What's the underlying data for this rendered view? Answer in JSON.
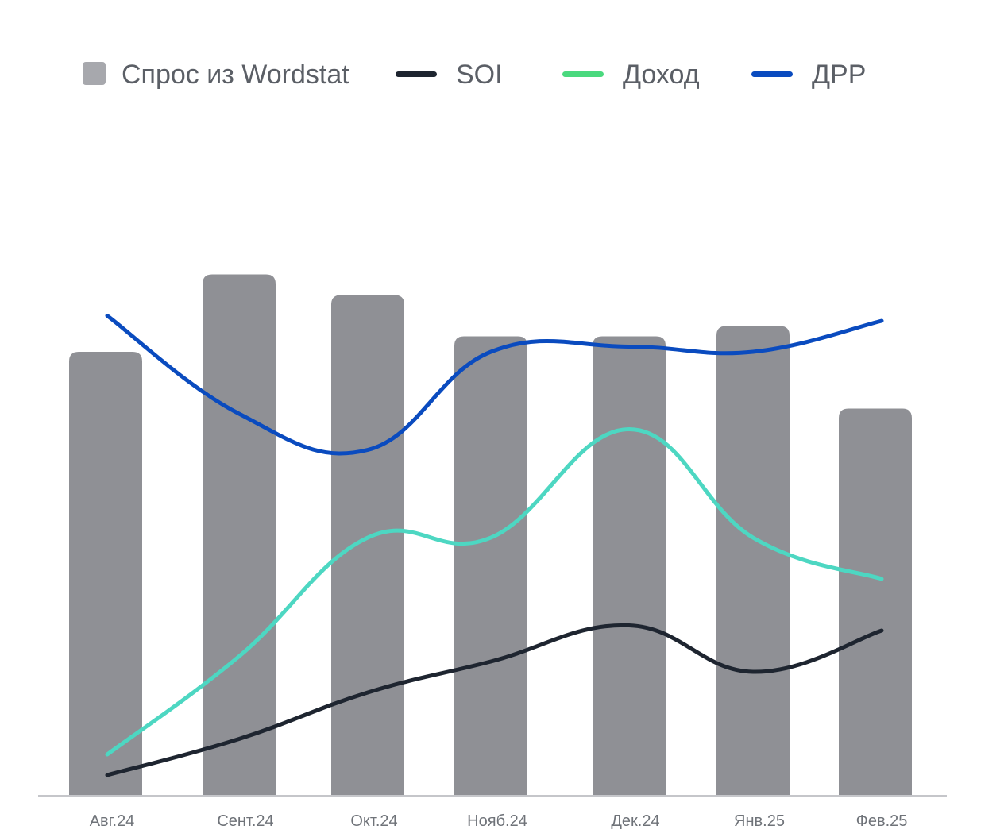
{
  "chart_data": {
    "type": "bar",
    "categories": [
      "Авг.24",
      "Сент.24",
      "Окт.24",
      "Нояб.24",
      "Дек.24",
      "Янв.25",
      "Фев.25"
    ],
    "series": [
      {
        "name": "Спрос из Wordstat",
        "type": "bar",
        "color": "#8f9095",
        "values": [
          86,
          101,
          97,
          89,
          89,
          91,
          75
        ]
      },
      {
        "name": "SOI",
        "type": "line",
        "color": "#1e2530",
        "values": [
          4,
          11,
          20,
          26,
          33,
          24,
          32
        ]
      },
      {
        "name": "Доход",
        "type": "line",
        "color": "#4dd7c2",
        "values": [
          8,
          27,
          50,
          50,
          71,
          50,
          42
        ]
      },
      {
        "name": "ДРР",
        "type": "line",
        "color": "#0a4bbf",
        "values": [
          93,
          74,
          67,
          86,
          87,
          86,
          92
        ]
      }
    ],
    "legend": {
      "position": "top-left",
      "items": [
        {
          "label": "Спрос из Wordstat",
          "marker": "square",
          "color": "#a7a8ad"
        },
        {
          "label": "SOI",
          "marker": "line",
          "color": "#1e2530"
        },
        {
          "label": "Доход",
          "marker": "line",
          "color": "#4ad97e"
        },
        {
          "label": "ДРР",
          "marker": "line",
          "color": "#0a4bbf"
        }
      ]
    },
    "xlabel": "",
    "ylabel": "",
    "ylim": [
      0,
      130
    ],
    "grid": false
  }
}
